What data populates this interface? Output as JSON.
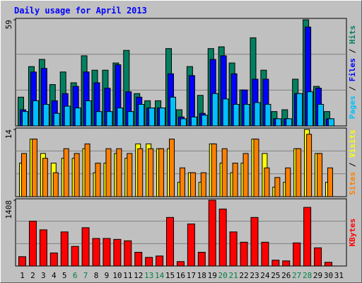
{
  "title": "Daily usage for April 2013",
  "legend_separator": " / ",
  "categories": [
    "1",
    "2",
    "3",
    "4",
    "5",
    "6",
    "7",
    "8",
    "9",
    "10",
    "11",
    "12",
    "13",
    "14",
    "15",
    "16",
    "17",
    "18",
    "19",
    "20",
    "21",
    "22",
    "23",
    "24",
    "25",
    "26",
    "27",
    "28",
    "29",
    "30",
    "31"
  ],
  "category_colors": [
    "#000000",
    "#000000",
    "#000000",
    "#000000",
    "#000000",
    "#008040",
    "#008040",
    "#000000",
    "#000000",
    "#000000",
    "#000000",
    "#000000",
    "#008040",
    "#008040",
    "#000000",
    "#000000",
    "#000000",
    "#000000",
    "#000000",
    "#008040",
    "#008040",
    "#000000",
    "#000000",
    "#000000",
    "#000000",
    "#000000",
    "#008040",
    "#008040",
    "#000000",
    "#000000",
    "#000000"
  ],
  "chart_data": [
    {
      "type": "bar",
      "ylim": [
        0,
        59
      ],
      "yticks": [
        59
      ],
      "series": [
        {
          "name": "Hits",
          "color": "#008060",
          "values": [
            16,
            33,
            37,
            23,
            30,
            24,
            39,
            31,
            31,
            35,
            42,
            18,
            14,
            14,
            43,
            9,
            33,
            17,
            43,
            44,
            35,
            20,
            49,
            31,
            8,
            9,
            26,
            59,
            22,
            8,
            0
          ]
        },
        {
          "name": "Files",
          "color": "#0000ff",
          "values": [
            9,
            30,
            32,
            14,
            18,
            22,
            30,
            24,
            21,
            34,
            19,
            16,
            10,
            10,
            29,
            5,
            28,
            7,
            37,
            39,
            29,
            20,
            26,
            26,
            4,
            4,
            18,
            55,
            21,
            4,
            0
          ]
        },
        {
          "name": "Pages",
          "color": "#00c0ff",
          "values": [
            8,
            14,
            12,
            7,
            11,
            10,
            14,
            8,
            8,
            10,
            8,
            12,
            10,
            10,
            16,
            4,
            5,
            6,
            18,
            15,
            12,
            12,
            13,
            12,
            4,
            4,
            18,
            19,
            12,
            4,
            0
          ]
        }
      ]
    },
    {
      "type": "bar",
      "ylim": [
        0,
        14
      ],
      "yticks": [
        14
      ],
      "series": [
        {
          "name": "Visits",
          "color": "#ffff00",
          "values": [
            7,
            12,
            9,
            7,
            8,
            8,
            10,
            5,
            7,
            9,
            8,
            11,
            11,
            10,
            10,
            3,
            5,
            3,
            11,
            7,
            5,
            7,
            12,
            9,
            2,
            3,
            10,
            14,
            9,
            3,
            0
          ]
        },
        {
          "name": "Sites",
          "color": "#ff8000",
          "values": [
            9,
            12,
            8,
            5,
            10,
            9,
            11,
            7,
            10,
            10,
            9,
            10,
            10,
            10,
            12,
            6,
            5,
            5,
            11,
            10,
            7,
            9,
            12,
            6,
            4,
            6,
            10,
            13,
            9,
            6,
            0
          ]
        }
      ]
    },
    {
      "type": "bar",
      "ylim": [
        0,
        1408
      ],
      "yticks": [
        1408
      ],
      "series": [
        {
          "name": "KBytes",
          "color": "#ff0000",
          "values": [
            200,
            960,
            775,
            280,
            730,
            420,
            820,
            590,
            590,
            570,
            540,
            295,
            185,
            215,
            1040,
            95,
            900,
            295,
            1408,
            1220,
            730,
            510,
            1040,
            510,
            125,
            110,
            495,
            1255,
            390,
            80,
            0
          ]
        }
      ]
    }
  ]
}
